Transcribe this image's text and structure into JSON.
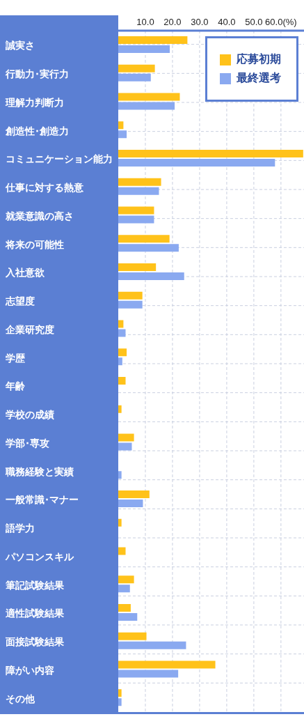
{
  "chart_data": {
    "type": "bar",
    "orientation": "horizontal",
    "categories": [
      "誠実さ",
      "行動力･実行力",
      "理解力判断力",
      "創造性･創造力",
      "コミュニケーション能力",
      "仕事に対する熱意",
      "就業意識の高さ",
      "将来の可能性",
      "入社意欲",
      "志望度",
      "企業研究度",
      "学歴",
      "年齢",
      "学校の成績",
      "学部･専攻",
      "職務経験と実績",
      "一般常識･マナー",
      "語学力",
      "パソコンスキル",
      "筆記試験結果",
      "適性試験結果",
      "面接試験結果",
      "障がい内容",
      "その他"
    ],
    "series": [
      {
        "name": "応募初期",
        "color": "#ffc21a",
        "values": [
          25.5,
          13.5,
          22.7,
          1.9,
          68.2,
          15.8,
          13.2,
          18.9,
          13.9,
          8.9,
          1.9,
          3.1,
          2.7,
          1.2,
          5.8,
          0,
          11.5,
          1.2,
          2.7,
          5.8,
          4.6,
          10.4,
          35.8,
          1.2
        ]
      },
      {
        "name": "最終選考",
        "color": "#8aa9f0",
        "values": [
          19.0,
          12.0,
          20.8,
          3.1,
          57.8,
          15.0,
          13.2,
          22.3,
          24.3,
          8.9,
          2.7,
          1.5,
          0,
          0,
          5.0,
          1.2,
          9.1,
          0,
          0,
          4.3,
          7.0,
          25.0,
          22.1,
          1.2
        ]
      }
    ],
    "xlim": [
      0,
      68.5
    ],
    "xticks": [
      {
        "value": 10,
        "label": "10.0"
      },
      {
        "value": 20,
        "label": "20.0"
      },
      {
        "value": 30,
        "label": "30.0"
      },
      {
        "value": 40,
        "label": "40.0"
      },
      {
        "value": 50,
        "label": "50.0"
      },
      {
        "value": 60,
        "label": "60.0(%)"
      }
    ],
    "grid": true,
    "legend": "top right"
  }
}
